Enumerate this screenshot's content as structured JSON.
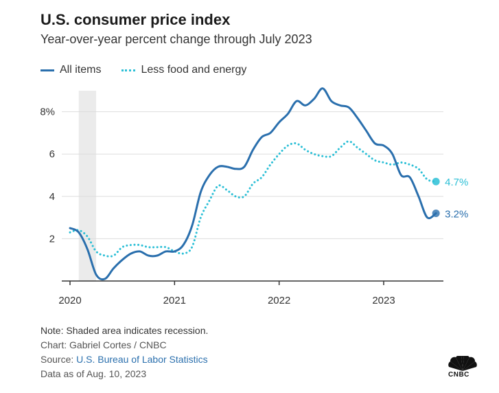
{
  "header": {
    "title": "U.S. consumer price index",
    "subtitle": "Year-over-year percent change through July 2023"
  },
  "footer": {
    "note": "Note: Shaded area indicates recession.",
    "credit": "Chart: Gabriel Cortes / CNBC",
    "source_prefix": "Source: ",
    "source_link": "U.S. Bureau of Labor Statistics",
    "data_as_of": "Data as of Aug. 10, 2023",
    "logo_text": "CNBC"
  },
  "colors": {
    "all_items": "#2a6fad",
    "core": "#2bbfd6",
    "recession": "#ebebeb",
    "grid": "#dddddd"
  },
  "chart_data": {
    "type": "line",
    "title": "U.S. consumer price index",
    "subtitle": "Year-over-year percent change through July 2023",
    "xlabel": "",
    "ylabel": "",
    "x_ticks": [
      "2020",
      "2021",
      "2022",
      "2023"
    ],
    "y_ticks": [
      "2",
      "4",
      "6",
      "8%"
    ],
    "y_tick_values": [
      2,
      4,
      6,
      8
    ],
    "ylim": [
      0,
      8.8
    ],
    "grid": true,
    "legend_position": "top-left",
    "recession": {
      "start": "2020-02",
      "end": "2020-04",
      "label": "recession"
    },
    "x": [
      "2020-01",
      "2020-02",
      "2020-03",
      "2020-04",
      "2020-05",
      "2020-06",
      "2020-07",
      "2020-08",
      "2020-09",
      "2020-10",
      "2020-11",
      "2020-12",
      "2021-01",
      "2021-02",
      "2021-03",
      "2021-04",
      "2021-05",
      "2021-06",
      "2021-07",
      "2021-08",
      "2021-09",
      "2021-10",
      "2021-11",
      "2021-12",
      "2022-01",
      "2022-02",
      "2022-03",
      "2022-04",
      "2022-05",
      "2022-06",
      "2022-07",
      "2022-08",
      "2022-09",
      "2022-10",
      "2022-11",
      "2022-12",
      "2023-01",
      "2023-02",
      "2023-03",
      "2023-04",
      "2023-05",
      "2023-06",
      "2023-07"
    ],
    "series": [
      {
        "name": "All items",
        "style": "solid",
        "values": [
          2.5,
          2.3,
          1.5,
          0.3,
          0.1,
          0.6,
          1.0,
          1.3,
          1.4,
          1.2,
          1.2,
          1.4,
          1.4,
          1.7,
          2.6,
          4.2,
          5.0,
          5.4,
          5.4,
          5.3,
          5.4,
          6.2,
          6.8,
          7.0,
          7.5,
          7.9,
          8.5,
          8.3,
          8.6,
          9.1,
          8.5,
          8.3,
          8.2,
          7.7,
          7.1,
          6.5,
          6.4,
          6.0,
          5.0,
          4.9,
          4.0,
          3.0,
          3.2
        ],
        "end_label": "3.2%"
      },
      {
        "name": "Less food and energy",
        "style": "dotted",
        "values": [
          2.3,
          2.4,
          2.1,
          1.4,
          1.2,
          1.2,
          1.6,
          1.7,
          1.7,
          1.6,
          1.6,
          1.6,
          1.4,
          1.3,
          1.6,
          3.0,
          3.8,
          4.5,
          4.3,
          4.0,
          4.0,
          4.6,
          4.9,
          5.5,
          6.0,
          6.4,
          6.5,
          6.2,
          6.0,
          5.9,
          5.9,
          6.3,
          6.6,
          6.3,
          6.0,
          5.7,
          5.6,
          5.5,
          5.6,
          5.5,
          5.3,
          4.8,
          4.7
        ],
        "end_label": "4.7%"
      }
    ]
  }
}
